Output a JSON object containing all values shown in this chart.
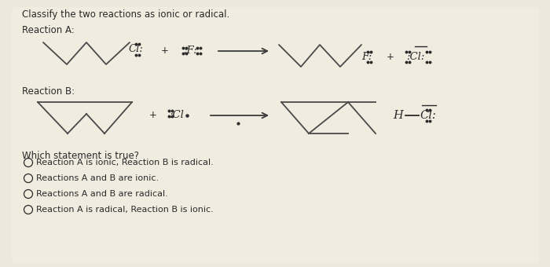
{
  "title": "Classify the two reactions as ionic or radical.",
  "reaction_a_label": "Reaction A:",
  "reaction_b_label": "Reaction B:",
  "question": "Which statement is true?",
  "options": [
    "Reaction A is ionic, Reaction B is radical.",
    "Reactions A and B are ionic.",
    "Reactions A and B are radical.",
    "Reaction A is radical, Reaction B is ionic."
  ],
  "bg_color": "#ede8dc",
  "text_color": "#2a2a2a",
  "font_size": 8.5,
  "title_font_size": 8.5
}
